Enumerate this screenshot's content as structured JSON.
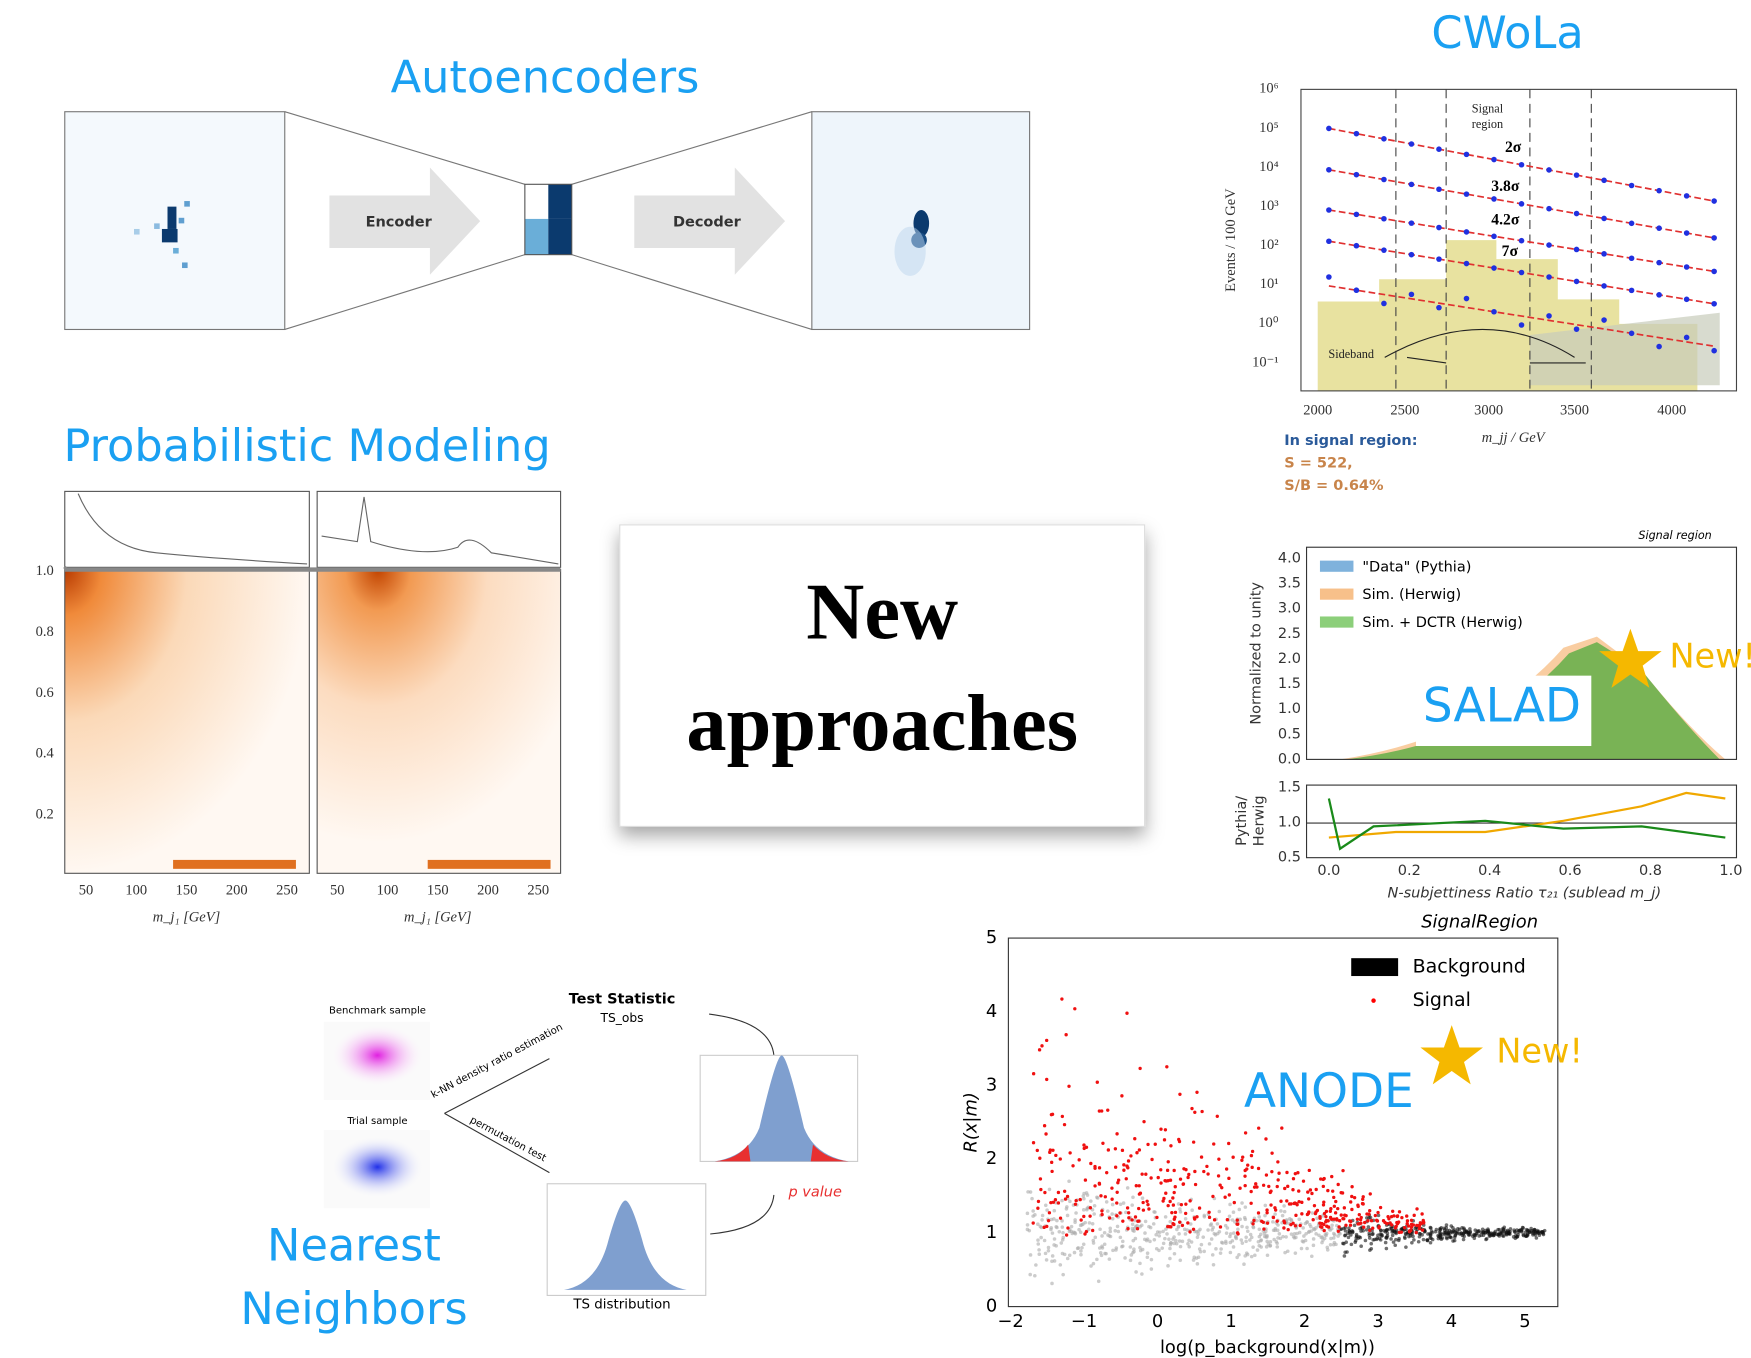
{
  "autoencoders": {
    "title": "Autoencoders",
    "encoder": "Encoder",
    "decoder": "Decoder"
  },
  "cwola": {
    "title": "CWoLa",
    "y_label": "Events / 100 GeV",
    "x_label": "m_jj / GeV",
    "y_ticks": [
      "10⁶",
      "10⁵",
      "10⁴",
      "10³",
      "10²",
      "10¹",
      "10⁰",
      "10⁻¹"
    ],
    "x_ticks": [
      "2000",
      "2500",
      "3000",
      "3500",
      "4000"
    ],
    "signal_region": [
      "Signal",
      "region"
    ],
    "significances": [
      "2σ",
      "3.8σ",
      "4.2σ",
      "7σ"
    ],
    "sideband": "Sideband",
    "note": [
      "In signal region:",
      "S = 522,",
      "S/B = 0.64%"
    ]
  },
  "probabilistic": {
    "title": "Probabilistic Modeling",
    "y_ticks": [
      "1.0",
      "0.8",
      "0.6",
      "0.4",
      "0.2"
    ],
    "x_ticks": [
      "50",
      "100",
      "150",
      "200",
      "250"
    ],
    "x_label": "m_j₁ [GeV]"
  },
  "center": {
    "line1": "New",
    "line2": "approaches"
  },
  "salad": {
    "title": "SALAD",
    "region": "Signal region",
    "legend": [
      "\"Data\" (Pythia)",
      "Sim. (Herwig)",
      "Sim. + DCTR (Herwig)"
    ],
    "y_label": "Normalized to unity",
    "y_ticks": [
      "4.0",
      "3.5",
      "3.0",
      "2.5",
      "2.0",
      "1.5",
      "1.0",
      "0.5",
      "0.0"
    ],
    "ratio_label": [
      "Pythia/",
      "Herwig"
    ],
    "ratio_ticks": [
      "1.5",
      "1.0",
      "0.5"
    ],
    "x_ticks": [
      "0.0",
      "0.2",
      "0.4",
      "0.6",
      "0.8",
      "1.0"
    ],
    "x_label": "N-subjettiness Ratio τ₂₁ (sublead m_j)",
    "badge": "New!"
  },
  "anode": {
    "title": "ANODE",
    "region": "SignalRegion",
    "legend": [
      "Background",
      "Signal"
    ],
    "y_label": "R(x|m)",
    "y_ticks": [
      "5",
      "4",
      "3",
      "2",
      "1",
      "0"
    ],
    "x_ticks": [
      "−2",
      "−1",
      "0",
      "1",
      "2",
      "3",
      "4",
      "5"
    ],
    "x_label": "log(p_background(x|m))",
    "badge": "New!"
  },
  "nearest": {
    "title": [
      "Nearest",
      "Neighbors"
    ],
    "benchmark": "Benchmark sample",
    "trial": "Trial sample",
    "arrow1": "k-NN density ratio estimation",
    "arrow2": "permutation test",
    "statistic": [
      "Test Statistic",
      "TS_obs"
    ],
    "distribution": "TS distribution",
    "p_value": "p value"
  }
}
